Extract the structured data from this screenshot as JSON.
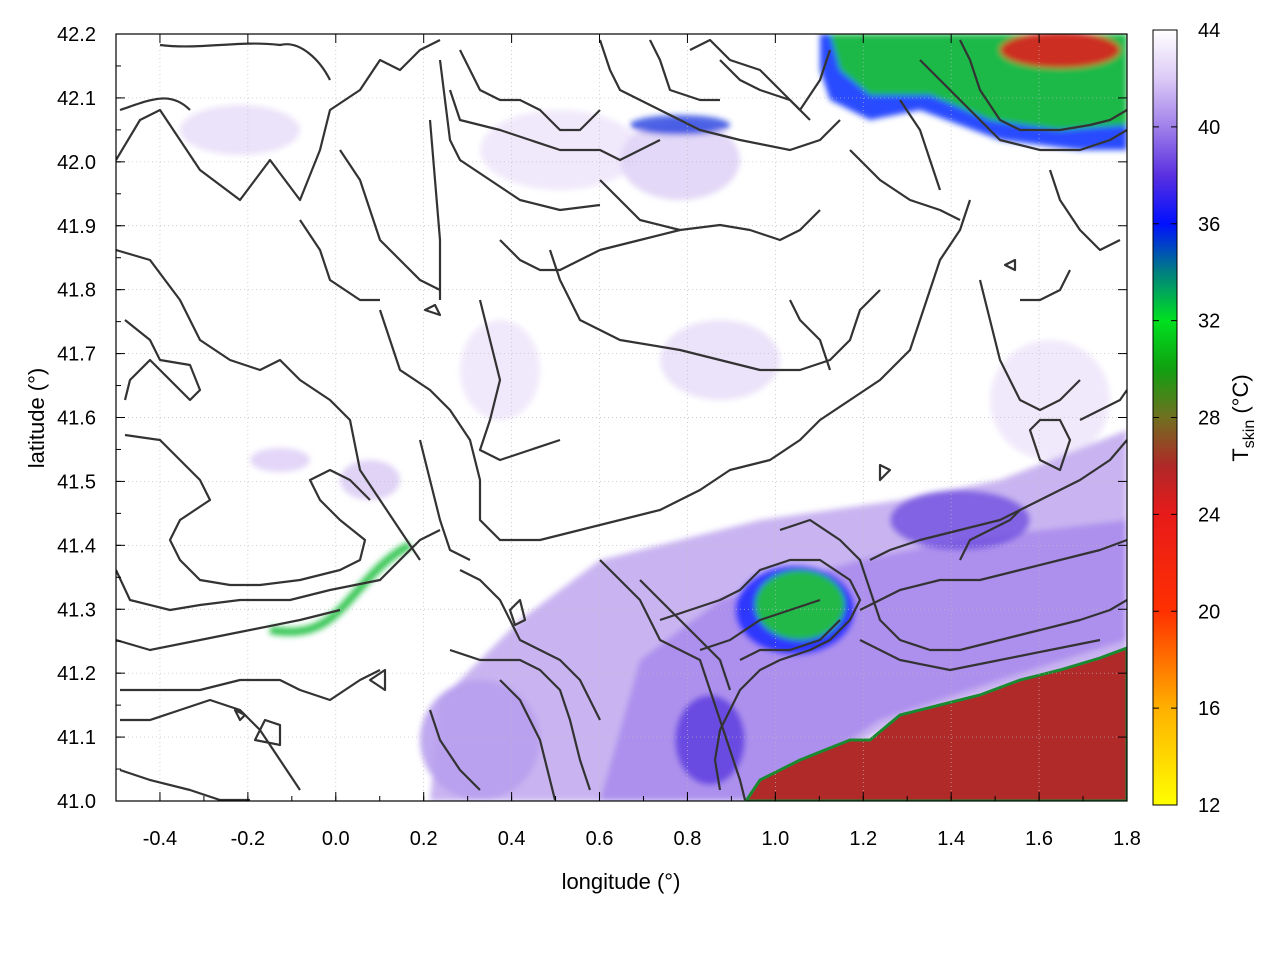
{
  "chart_data": {
    "type": "heatmap",
    "title": "",
    "xlabel": "longitude (°)",
    "ylabel": "latitude (°)",
    "xlim": [
      -0.5,
      1.8
    ],
    "ylim": [
      41.0,
      42.2
    ],
    "xticks": [
      -0.4,
      -0.2,
      0.0,
      0.2,
      0.4,
      0.6,
      0.8,
      1.0,
      1.2,
      1.4,
      1.6,
      1.8
    ],
    "xtick_labels": [
      "-0.4",
      "-0.2",
      "0.0",
      "0.2",
      "0.4",
      "0.6",
      "0.8",
      "1.0",
      "1.2",
      "1.4",
      "1.6",
      "1.8"
    ],
    "yticks": [
      41.0,
      41.1,
      41.2,
      41.3,
      41.4,
      41.5,
      41.6,
      41.7,
      41.8,
      41.9,
      42.0,
      42.1,
      42.2
    ],
    "ytick_labels": [
      "41.0",
      "41.1",
      "41.2",
      "41.3",
      "41.4",
      "41.5",
      "41.6",
      "41.7",
      "41.8",
      "41.9",
      "42.0",
      "42.1",
      "42.2"
    ],
    "grid": true,
    "colorbar": {
      "label_main": "T",
      "label_sub": "skin",
      "label_unit": " (°C)",
      "range": [
        12,
        44
      ],
      "ticks": [
        12,
        16,
        20,
        24,
        28,
        32,
        36,
        40,
        44
      ],
      "tick_labels": [
        "12",
        "16",
        "20",
        "24",
        "28",
        "32",
        "36",
        "40",
        "44"
      ],
      "stops": [
        {
          "value": 12,
          "color": "#ffff00"
        },
        {
          "value": 16,
          "color": "#ffb000"
        },
        {
          "value": 20,
          "color": "#ff3000"
        },
        {
          "value": 24,
          "color": "#e81a1a"
        },
        {
          "value": 26,
          "color": "#b02828"
        },
        {
          "value": 28,
          "color": "#707020"
        },
        {
          "value": 30,
          "color": "#10a010"
        },
        {
          "value": 32,
          "color": "#00e020"
        },
        {
          "value": 34,
          "color": "#008080"
        },
        {
          "value": 36,
          "color": "#0010ff"
        },
        {
          "value": 38,
          "color": "#5a30e0"
        },
        {
          "value": 40,
          "color": "#a080ea"
        },
        {
          "value": 42,
          "color": "#dccaf6"
        },
        {
          "value": 44,
          "color": "#ffffff"
        }
      ]
    },
    "field_regions": [
      {
        "name": "northeast-warm-zone",
        "lon": [
          1.1,
          1.8
        ],
        "lat": [
          42.0,
          42.2
        ],
        "value": 31
      },
      {
        "name": "northeast-hot-core",
        "lon": [
          1.5,
          1.8
        ],
        "lat": [
          42.1,
          42.2
        ],
        "value": 22
      },
      {
        "name": "central-east-warm-patch",
        "lon": [
          0.95,
          1.15
        ],
        "lat": [
          41.22,
          41.36
        ],
        "value": 31
      },
      {
        "name": "southeast-sea",
        "lon": [
          0.92,
          1.8
        ],
        "lat": [
          41.0,
          41.24
        ],
        "value": 25
      },
      {
        "name": "southeast-lilac-band",
        "lon": [
          0.4,
          1.8
        ],
        "lat": [
          41.0,
          41.5
        ],
        "value": 39
      }
    ],
    "contour_color": "#333333"
  }
}
